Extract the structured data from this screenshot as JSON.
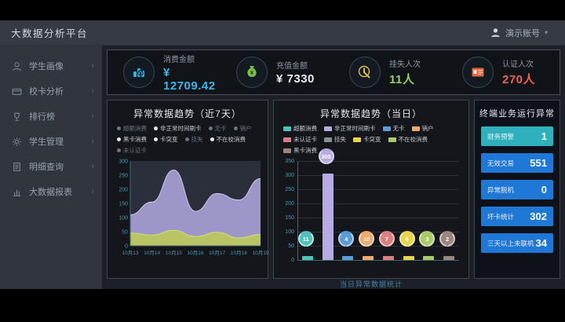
{
  "app": {
    "title": "大数据分析平台",
    "user": {
      "name": "演示账号",
      "caret": "▾"
    }
  },
  "sidebar": {
    "items": [
      {
        "id": "student-portrait",
        "label": "学生画像",
        "icon": "user-icon",
        "arrow": "›"
      },
      {
        "id": "card-analysis",
        "label": "校卡分析",
        "icon": "card-icon",
        "arrow": "›"
      },
      {
        "id": "ranking",
        "label": "排行榜",
        "icon": "trophy-icon",
        "arrow": "›"
      },
      {
        "id": "student-management",
        "label": "学生管理",
        "icon": "gear-icon",
        "arrow": "›"
      },
      {
        "id": "detail-query",
        "label": "明细查询",
        "icon": "doc-icon",
        "arrow": "›"
      },
      {
        "id": "bigdata-report",
        "label": "大数据报表",
        "icon": "chart-icon",
        "arrow": "›"
      }
    ]
  },
  "kpis": [
    {
      "id": "consume-amount",
      "label": "消费金额",
      "value": "¥ 12709.42",
      "value_color": "#38b6ee",
      "icon": "coins-icon",
      "icon_color": "#2eb3e8"
    },
    {
      "id": "recharge-amount",
      "label": "充值金额",
      "value": "¥ 7330",
      "value_color": "#e8eef3",
      "icon": "money-bag-icon",
      "icon_color": "#7cc142"
    },
    {
      "id": "loss-report-count",
      "label": "挂失人次",
      "value": "11人",
      "value_color": "#9ccc65",
      "icon": "touch-icon",
      "icon_color": "#e0c23f"
    },
    {
      "id": "auth-count",
      "label": "认证人次",
      "value": "270人",
      "value_color": "#ee6352",
      "icon": "id-card-icon",
      "icon_color": "#e8643f"
    }
  ],
  "chart_data": [
    {
      "type": "area",
      "title": "异常数据趋势（近7天）",
      "categories": [
        "10月13",
        "10月14",
        "10月15",
        "10月16",
        "10月17",
        "10月18",
        "10月19"
      ],
      "series": [
        {
          "name": "非正常时间刷卡",
          "color": "#a79fd6",
          "line_color": "#cfc9ea",
          "values": [
            110,
            155,
            268,
            122,
            185,
            162,
            238
          ]
        },
        {
          "name": "超额消费",
          "color": "#bcc95b",
          "line_color": "#d6e070",
          "values": [
            45,
            38,
            55,
            33,
            48,
            28,
            40
          ]
        }
      ],
      "legend": [
        {
          "label": "超额消费",
          "active": false
        },
        {
          "label": "非正常时间刷卡",
          "active": true
        },
        {
          "label": "无卡",
          "active": false
        },
        {
          "label": "销户",
          "active": false
        },
        {
          "label": "黑卡消费",
          "active": true
        },
        {
          "label": "卡突变",
          "active": true
        },
        {
          "label": "挂失",
          "active": false
        },
        {
          "label": "不在校消费",
          "active": true
        },
        {
          "label": "未认证卡",
          "active": false
        }
      ],
      "ylim": [
        0,
        300
      ],
      "yticks": [
        0,
        50,
        100,
        150,
        200,
        250,
        300
      ],
      "grid": false,
      "legend_position": "top"
    },
    {
      "type": "bar",
      "title": "异常数据趋势（当日）",
      "categories": [
        "超额消费",
        "非正常时间刷卡",
        "无卡",
        "销户",
        "未认证卡",
        "卡突变",
        "不在校消费",
        "黑卡消费"
      ],
      "values": [
        11,
        305,
        4,
        10,
        7,
        6,
        3,
        2
      ],
      "colors": [
        "#4fc3b8",
        "#b7abe3",
        "#5c9bd6",
        "#f2a96c",
        "#d98080",
        "#e8d44f",
        "#a9c96a",
        "#9b857f"
      ],
      "legend": [
        {
          "label": "超额消费",
          "color": "#4fc3b8"
        },
        {
          "label": "非正常时间刷卡",
          "color": "#b7abe3"
        },
        {
          "label": "无卡",
          "color": "#5c9bd6"
        },
        {
          "label": "销户",
          "color": "#f2a96c"
        },
        {
          "label": "未认证卡",
          "color": "#d98080"
        },
        {
          "label": "挂失",
          "color": "#8a9097"
        },
        {
          "label": "卡突变",
          "color": "#e8d44f"
        },
        {
          "label": "不在校消费",
          "color": "#a9c96a"
        },
        {
          "label": "黑卡消费",
          "color": "#9b857f"
        }
      ],
      "ylim": [
        0,
        350
      ],
      "yticks": [
        0,
        50,
        100,
        150,
        200,
        250,
        300,
        350
      ],
      "grid": true,
      "legend_position": "top",
      "footer": "当日异常数据统计"
    }
  ],
  "terminal_panel": {
    "title": "终端业务运行异常",
    "items": [
      {
        "label": "财务预警",
        "value": "1",
        "color": "#2fb0bd"
      },
      {
        "label": "无效交易",
        "value": "551",
        "color": "#1f77d6"
      },
      {
        "label": "异常脱机",
        "value": "0",
        "color": "#1f77d6"
      },
      {
        "label": "坏卡统计",
        "value": "302",
        "color": "#1f77d6"
      },
      {
        "label": "三天以上未联机",
        "value": "34",
        "color": "#1f77d6"
      }
    ]
  }
}
